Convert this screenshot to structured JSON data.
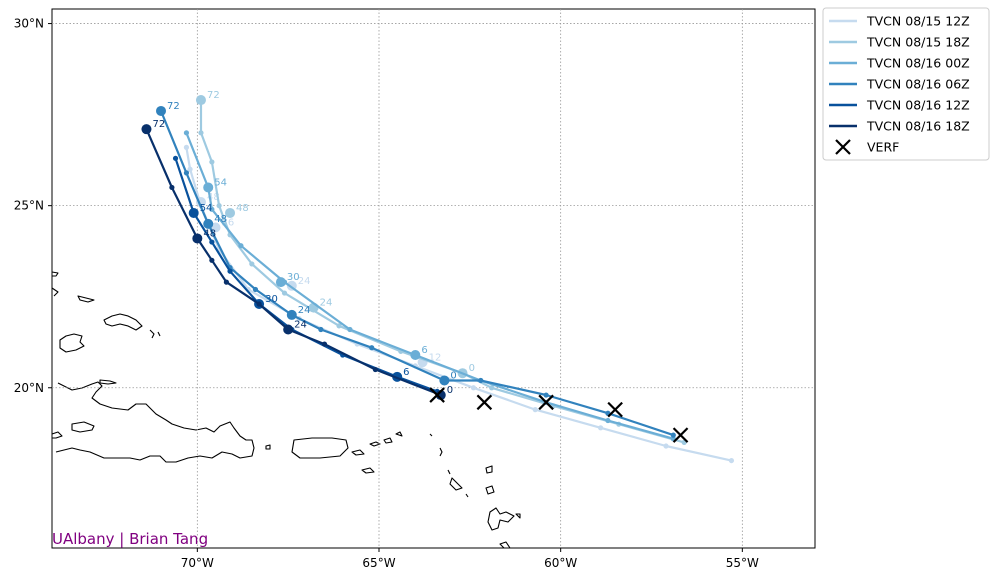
{
  "chart_data": {
    "type": "map-track",
    "map": {
      "lon_range": [
        -74,
        -53
      ],
      "lat_range": [
        15.6,
        30.4
      ],
      "x_ticks": [
        {
          "value": -70,
          "label": "70°W"
        },
        {
          "value": -65,
          "label": "65°W"
        },
        {
          "value": -60,
          "label": "60°W"
        },
        {
          "value": -55,
          "label": "55°W"
        }
      ],
      "y_ticks": [
        {
          "value": 20,
          "label": "20°N"
        },
        {
          "value": 25,
          "label": "25°N"
        },
        {
          "value": 30,
          "label": "30°N"
        }
      ],
      "grid": true,
      "grid_style": "dotted"
    },
    "legend_position": "outside-upper-right",
    "series": [
      {
        "name": "TVCN 08/15 12Z",
        "color": "#c6dbef",
        "track": [
          [
            -55.3,
            18.0
          ],
          [
            -57.1,
            18.4
          ],
          [
            -58.9,
            18.9
          ],
          [
            -60.7,
            19.4
          ],
          [
            -62.4,
            20.0
          ],
          [
            -64.0,
            20.6
          ],
          [
            -65.6,
            21.2
          ],
          [
            -67.2,
            21.9
          ],
          [
            -68.6,
            22.7
          ],
          [
            -69.4,
            23.8
          ],
          [
            -69.9,
            25.0
          ],
          [
            -70.2,
            26.0
          ],
          [
            -70.3,
            26.6
          ]
        ],
        "labeled": [
          {
            "lon": -63.8,
            "lat": 20.7,
            "label": "12"
          },
          {
            "lon": -67.4,
            "lat": 22.8,
            "label": "24"
          },
          {
            "lon": -69.5,
            "lat": 24.4,
            "label": "36"
          },
          {
            "lon": -69.9,
            "lat": 25.1,
            "label": "48"
          }
        ]
      },
      {
        "name": "TVCN 08/15 18Z",
        "color": "#9ecae1",
        "track": [
          [
            -56.6,
            18.5
          ],
          [
            -58.4,
            19.0
          ],
          [
            -60.2,
            19.5
          ],
          [
            -61.9,
            20.0
          ],
          [
            -62.7,
            20.4
          ],
          [
            -64.4,
            21.0
          ],
          [
            -66.1,
            21.7
          ],
          [
            -67.6,
            22.6
          ],
          [
            -68.5,
            23.4
          ],
          [
            -69.1,
            24.2
          ],
          [
            -69.4,
            25.0
          ],
          [
            -69.6,
            26.2
          ],
          [
            -69.9,
            27.0
          ],
          [
            -69.9,
            27.9
          ]
        ],
        "labeled": [
          {
            "lon": -62.7,
            "lat": 20.4,
            "label": "0"
          },
          {
            "lon": -66.8,
            "lat": 22.2,
            "label": "24"
          },
          {
            "lon": -69.1,
            "lat": 24.8,
            "label": "48"
          },
          {
            "lon": -69.9,
            "lat": 27.9,
            "label": "72"
          }
        ]
      },
      {
        "name": "TVCN 08/16 00Z",
        "color": "#6baed6",
        "track": [
          [
            -56.9,
            18.6
          ],
          [
            -58.7,
            19.1
          ],
          [
            -60.4,
            19.6
          ],
          [
            -62.2,
            20.2
          ],
          [
            -64.0,
            20.9
          ],
          [
            -65.8,
            21.6
          ],
          [
            -67.6,
            22.9
          ],
          [
            -68.8,
            23.9
          ],
          [
            -69.6,
            24.9
          ],
          [
            -69.7,
            25.5
          ],
          [
            -70.3,
            27.0
          ]
        ],
        "labeled": [
          {
            "lon": -64.0,
            "lat": 20.9,
            "label": "6"
          },
          {
            "lon": -67.7,
            "lat": 22.9,
            "label": "30"
          },
          {
            "lon": -69.7,
            "lat": 25.5,
            "label": "54"
          }
        ]
      },
      {
        "name": "TVCN 08/16 06Z",
        "color": "#3182bd",
        "track": [
          [
            -56.9,
            18.7
          ],
          [
            -58.7,
            19.3
          ],
          [
            -60.4,
            19.8
          ],
          [
            -62.2,
            20.2
          ],
          [
            -63.2,
            20.2
          ],
          [
            -65.2,
            21.1
          ],
          [
            -66.6,
            21.6
          ],
          [
            -67.4,
            22.0
          ],
          [
            -68.4,
            22.7
          ],
          [
            -69.1,
            23.3
          ],
          [
            -69.7,
            24.5
          ],
          [
            -70.3,
            25.9
          ],
          [
            -71.0,
            27.6
          ]
        ],
        "labeled": [
          {
            "lon": -63.2,
            "lat": 20.2,
            "label": "0"
          },
          {
            "lon": -67.4,
            "lat": 22.0,
            "label": "24"
          },
          {
            "lon": -69.7,
            "lat": 24.5,
            "label": "48"
          },
          {
            "lon": -71.0,
            "lat": 27.6,
            "label": "72"
          }
        ]
      },
      {
        "name": "TVCN 08/16 12Z",
        "color": "#08519c",
        "track": [
          [
            -63.4,
            19.9
          ],
          [
            -64.5,
            20.3
          ],
          [
            -66.0,
            20.9
          ],
          [
            -67.4,
            21.6
          ],
          [
            -68.3,
            22.3
          ],
          [
            -69.1,
            23.2
          ],
          [
            -69.6,
            24.0
          ],
          [
            -70.1,
            24.8
          ],
          [
            -70.6,
            26.3
          ]
        ],
        "labeled": [
          {
            "lon": -64.5,
            "lat": 20.3,
            "label": "6"
          },
          {
            "lon": -68.3,
            "lat": 22.3,
            "label": "30"
          },
          {
            "lon": -70.1,
            "lat": 24.8,
            "label": "54"
          }
        ]
      },
      {
        "name": "TVCN 08/16 18Z",
        "color": "#08306b",
        "track": [
          [
            -63.3,
            19.8
          ],
          [
            -65.1,
            20.5
          ],
          [
            -66.5,
            21.2
          ],
          [
            -67.5,
            21.6
          ],
          [
            -68.3,
            22.3
          ],
          [
            -69.2,
            22.9
          ],
          [
            -69.6,
            23.5
          ],
          [
            -70.0,
            24.1
          ],
          [
            -70.7,
            25.5
          ],
          [
            -71.4,
            27.1
          ]
        ],
        "labeled": [
          {
            "lon": -63.3,
            "lat": 19.8,
            "label": "0"
          },
          {
            "lon": -67.5,
            "lat": 21.6,
            "label": "24"
          },
          {
            "lon": -70.0,
            "lat": 24.1,
            "label": "48"
          },
          {
            "lon": -71.4,
            "lat": 27.1,
            "label": "72"
          }
        ]
      }
    ],
    "verification": {
      "name": "VERF",
      "marker": "x",
      "color": "#000000",
      "points": [
        [
          -63.4,
          19.8
        ],
        [
          -62.1,
          19.6
        ],
        [
          -60.4,
          19.6
        ],
        [
          -58.5,
          19.4
        ],
        [
          -56.7,
          18.7
        ]
      ]
    },
    "land_note": "Hispaniola, Puerto Rico and Lesser Antilles coastlines drawn as outlines"
  },
  "credit": {
    "text": "UAlbany | Brian Tang",
    "color": "#800080"
  }
}
